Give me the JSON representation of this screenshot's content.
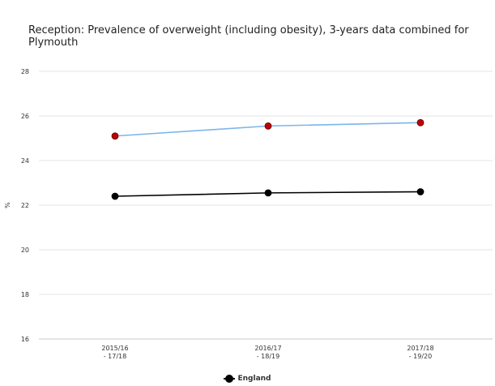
{
  "chart_data": {
    "type": "line",
    "title": "Reception: Prevalence of overweight (including obesity), 3-years data combined for Plymouth",
    "ylabel": "%",
    "xlabel": "",
    "ylim": [
      16,
      28
    ],
    "yticks": [
      16,
      18,
      20,
      22,
      24,
      26,
      28
    ],
    "grid": true,
    "legend_position": "bottom-center",
    "categories": [
      [
        "2015/16",
        "- 17/18"
      ],
      [
        "2016/17",
        "- 18/19"
      ],
      [
        "2017/18",
        "- 19/20"
      ]
    ],
    "series": [
      {
        "name": "",
        "values": [
          25.1,
          25.55,
          25.7
        ],
        "line_color": "#7cb5ec",
        "marker_color": "#c00000"
      },
      {
        "name": "England",
        "values": [
          22.4,
          22.55,
          22.6
        ],
        "line_color": "#000000",
        "marker_color": "#000000"
      }
    ]
  }
}
